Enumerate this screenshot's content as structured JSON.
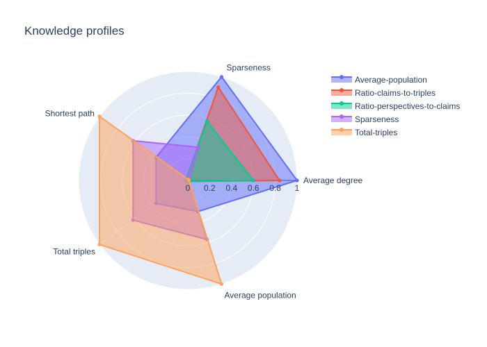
{
  "chart_data": {
    "type": "radar",
    "title": "Knowledge profiles",
    "axes": [
      "Average degree",
      "Sparseness",
      "Shortest path",
      "Total triples",
      "Average population"
    ],
    "radial_range": [
      0,
      1
    ],
    "radial_ticks": [
      "0",
      "0.2",
      "0.4",
      "0.6",
      "0.8",
      "1"
    ],
    "series": [
      {
        "name": "Average-population",
        "color": "#636efa",
        "values": [
          1.0,
          1.0,
          0.36,
          0.36,
          0.3
        ]
      },
      {
        "name": "Ratio-claims-to-triples",
        "color": "#ef553b",
        "values": [
          0.84,
          0.9,
          0.02,
          0.01,
          0.01
        ]
      },
      {
        "name": "Ratio-perspectives-to-claims",
        "color": "#00cc96",
        "values": [
          0.6,
          0.57,
          0.02,
          0.01,
          0.01
        ]
      },
      {
        "name": "Sparseness",
        "color": "#ab63fa",
        "values": [
          0.01,
          0.32,
          0.62,
          0.62,
          0.57
        ]
      },
      {
        "name": "Total-triples",
        "color": "#ffa15a",
        "values": [
          0.01,
          0.01,
          1.0,
          1.0,
          1.0
        ]
      }
    ],
    "legend_position": "top-right",
    "grid": true
  }
}
